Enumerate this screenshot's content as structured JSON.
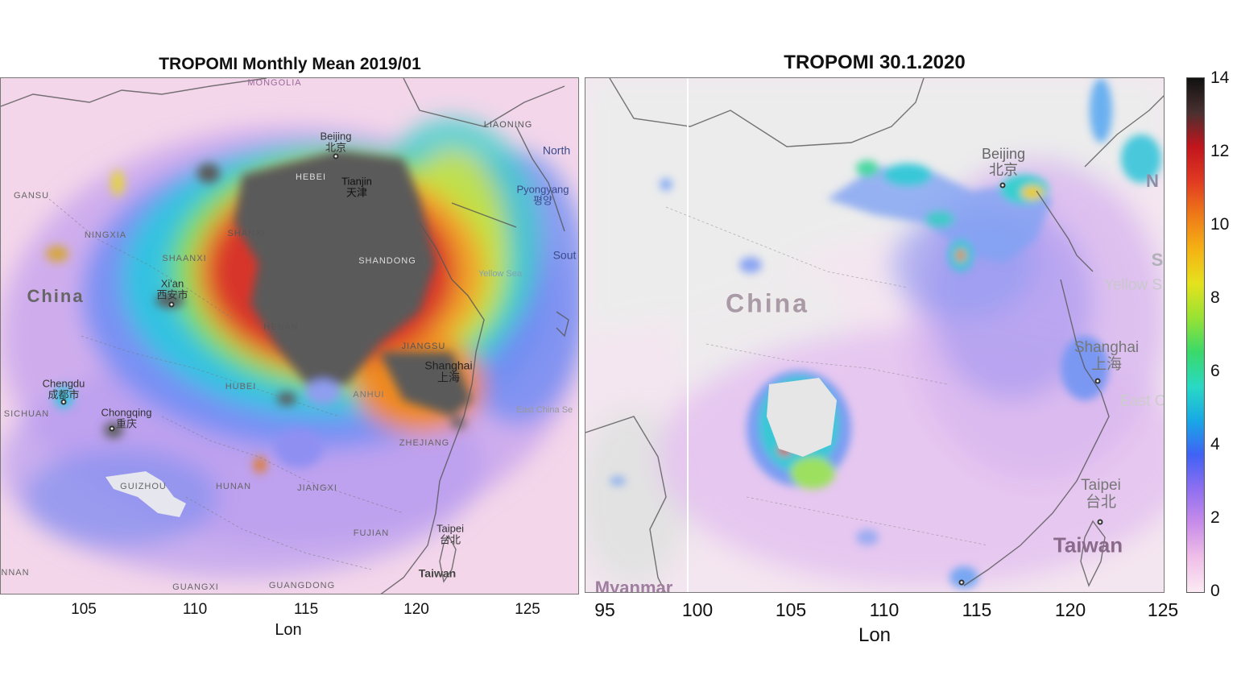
{
  "left_panel": {
    "title": "TROPOMI Monthly Mean 2019/01",
    "x_ticks": [
      "105",
      "110",
      "115",
      "120",
      "125"
    ],
    "x_label": "Lon",
    "places": {
      "mongolia": "MONGOLIA",
      "liaoning": "LIAONING",
      "north": "North",
      "beijing": "Beijing",
      "beijing_cn": "北京",
      "hebei": "HEBEI",
      "tianjin": "Tianjin",
      "tianjin_cn": "天津",
      "pyongyang": "Pyongyang",
      "pyongyang_kr": "평양",
      "gansu": "GANSU",
      "ningxia": "NINGXIA",
      "shanxi": "SHANXI",
      "shaanxi": "SHAANXI",
      "shandong": "SHANDONG",
      "south": "Sout",
      "yellow_sea": "Yellow Sea",
      "china": "China",
      "xian": "Xi'an",
      "xian_cn": "西安市",
      "henan": "HENAN",
      "jiangsu": "JIANGSU",
      "shanghai": "Shanghai",
      "shanghai_cn": "上海",
      "chengdu": "Chengdu",
      "chengdu_cn": "成都市",
      "hubei": "HUBEI",
      "anhui": "ANHUI",
      "east_china_sea": "East China Se",
      "sichuan": "SICHUAN",
      "chongqing": "Chongqing",
      "chongqing_cn": "重庆",
      "zhejiang": "ZHEJIANG",
      "guizhou": "GUIZHOU",
      "hunan": "HUNAN",
      "jiangxi": "JIANGXI",
      "fujian": "FUJIAN",
      "taipei": "Taipei",
      "taipei_cn": "台北",
      "taiwan": "Taiwan",
      "guangxi": "GUANGXI",
      "guangdong": "GUANGDONG",
      "nnan": "NNAN"
    }
  },
  "right_panel": {
    "title": "TROPOMI 30.1.2020",
    "x_ticks": [
      "95",
      "100",
      "105",
      "110",
      "115",
      "120",
      "125"
    ],
    "x_label": "Lon",
    "places": {
      "beijing": "Beijing",
      "beijing_cn": "北京",
      "china": "China",
      "yellow_sea": "Yellow S",
      "shanghai": "Shanghai",
      "shanghai_cn": "上海",
      "east": "East C",
      "taipei": "Taipei",
      "taipei_cn": "台北",
      "taiwan": "Taiwan",
      "myanmar": "Myanmar",
      "n_cut": "N",
      "s_cut": "S"
    }
  },
  "colorbar": {
    "ticks": [
      "14",
      "12",
      "10",
      "8",
      "6",
      "4",
      "2",
      "0"
    ],
    "colors": [
      "#fbeaf3",
      "#f0bfe8",
      "#c98de9",
      "#8f6ff0",
      "#4062f5",
      "#18a8e6",
      "#29d9c4",
      "#3ad96a",
      "#97e234",
      "#e5e21d",
      "#f5b214",
      "#ef7a18",
      "#e03a22",
      "#c1151d",
      "#4a3030",
      "#111111"
    ]
  }
}
